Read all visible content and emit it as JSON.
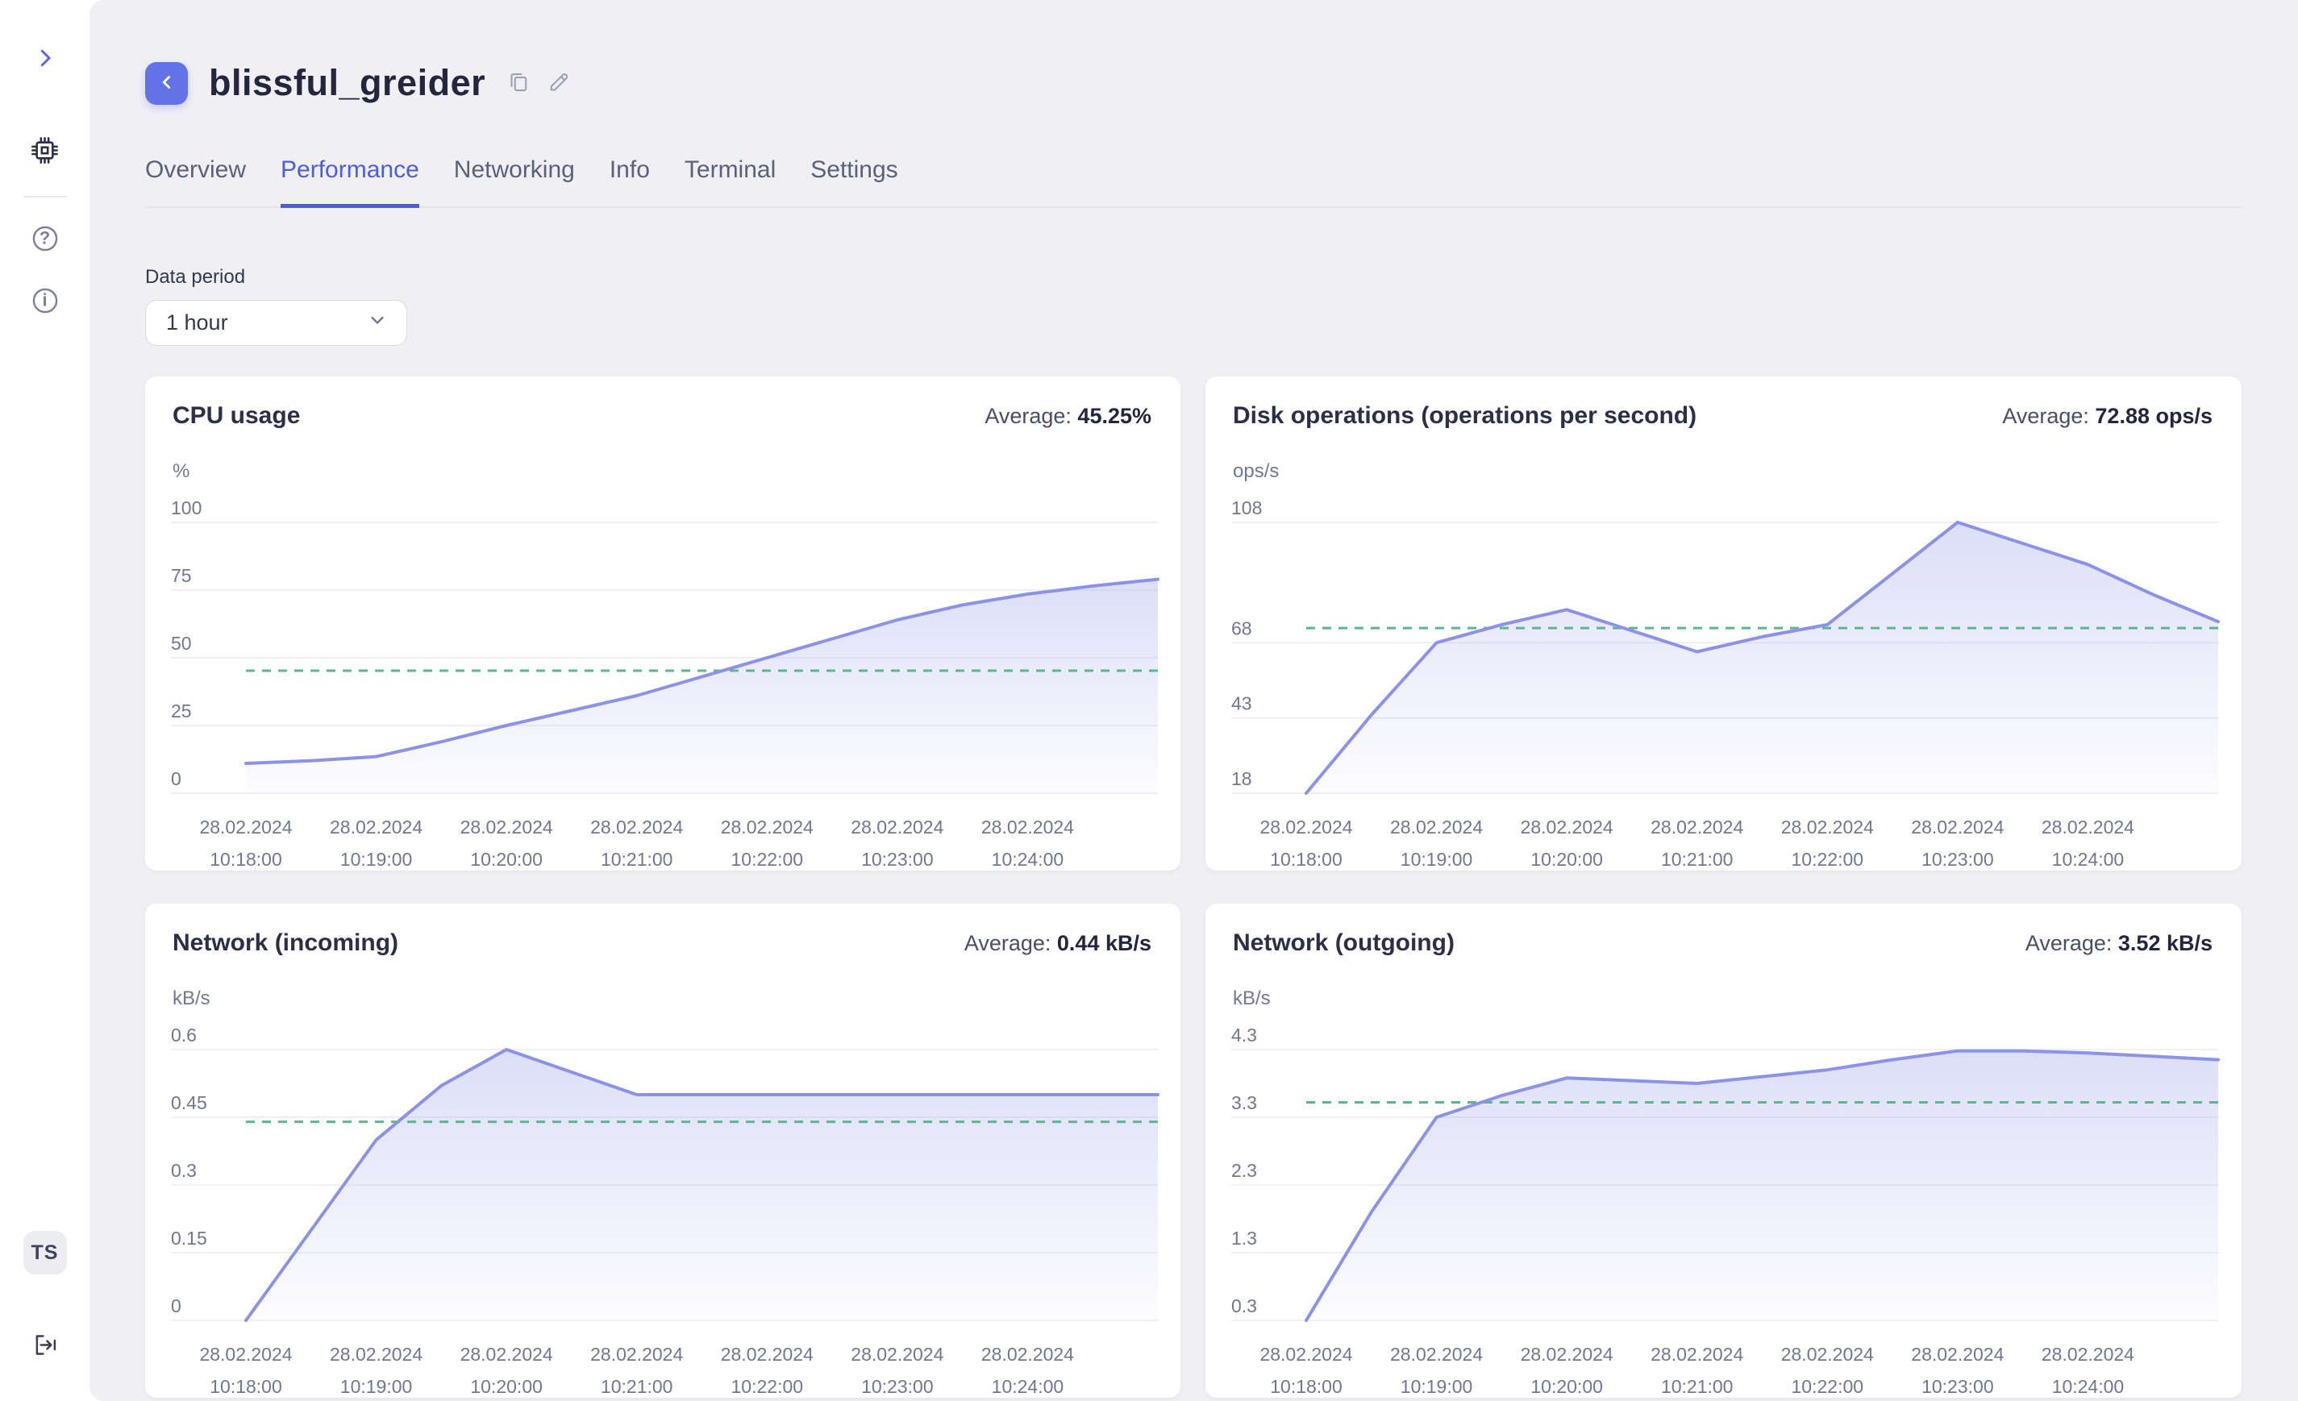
{
  "sidebar": {
    "avatar_initials": "TS",
    "icons": [
      "chevron-right",
      "chip",
      "help",
      "info",
      "logout"
    ]
  },
  "header": {
    "title": "blissful_greider"
  },
  "tabs": [
    {
      "label": "Overview",
      "active": false
    },
    {
      "label": "Performance",
      "active": true
    },
    {
      "label": "Networking",
      "active": false
    },
    {
      "label": "Info",
      "active": false
    },
    {
      "label": "Terminal",
      "active": false
    },
    {
      "label": "Settings",
      "active": false
    }
  ],
  "filter": {
    "label": "Data period",
    "value": "1 hour"
  },
  "colors": {
    "accent": "#4d5ce1",
    "back_button": "#6272e8",
    "line": "#8b92e8",
    "area_top": "rgba(139,146,232,0.30)",
    "area_bottom": "rgba(139,146,232,0.02)",
    "average_dash": "#58b98c",
    "grid": "#ececf1",
    "tick_text": "#73778e"
  },
  "chart_data": [
    {
      "type": "area",
      "title": "CPU usage",
      "unit": "%",
      "average_label": "Average:",
      "average_display": "45.25%",
      "average": 45.25,
      "ylim": [
        0,
        100
      ],
      "y_ticks": [
        100,
        75,
        50,
        25,
        0
      ],
      "xlim": [
        0,
        7
      ],
      "x_labels": [
        {
          "date": "28.02.2024",
          "time": "10:18:00"
        },
        {
          "date": "28.02.2024",
          "time": "10:19:00"
        },
        {
          "date": "28.02.2024",
          "time": "10:20:00"
        },
        {
          "date": "28.02.2024",
          "time": "10:21:00"
        },
        {
          "date": "28.02.2024",
          "time": "10:22:00"
        },
        {
          "date": "28.02.2024",
          "time": "10:23:00"
        },
        {
          "date": "28.02.2024",
          "time": "10:24:00"
        }
      ],
      "points": {
        "t": [
          0,
          0.5,
          1,
          1.5,
          2,
          2.5,
          3,
          3.5,
          4,
          4.5,
          5,
          5.5,
          6,
          6.5,
          7
        ],
        "v": [
          11,
          12,
          13.5,
          19,
          25,
          30.5,
          36,
          43,
          50,
          57,
          64,
          69.5,
          73.5,
          76.5,
          79
        ]
      }
    },
    {
      "type": "area",
      "title": "Disk operations (operations per second)",
      "unit": "ops/s",
      "average_label": "Average:",
      "average_display": "72.88 ops/s",
      "average": 72.88,
      "ylim": [
        18,
        108
      ],
      "y_ticks": [
        108,
        68,
        43,
        18
      ],
      "xlim": [
        0,
        7
      ],
      "x_labels": [
        {
          "date": "28.02.2024",
          "time": "10:18:00"
        },
        {
          "date": "28.02.2024",
          "time": "10:19:00"
        },
        {
          "date": "28.02.2024",
          "time": "10:20:00"
        },
        {
          "date": "28.02.2024",
          "time": "10:21:00"
        },
        {
          "date": "28.02.2024",
          "time": "10:22:00"
        },
        {
          "date": "28.02.2024",
          "time": "10:23:00"
        },
        {
          "date": "28.02.2024",
          "time": "10:24:00"
        }
      ],
      "points": {
        "t": [
          0,
          0.5,
          1,
          1.5,
          2,
          2.5,
          3,
          3.5,
          4,
          4.5,
          5,
          5.5,
          6,
          6.5,
          7
        ],
        "v": [
          18,
          44,
          68,
          74,
          79,
          72,
          65,
          70,
          74,
          91,
          108,
          101,
          94,
          84,
          75
        ]
      }
    },
    {
      "type": "area",
      "title": "Network (incoming)",
      "unit": "kB/s",
      "average_label": "Average:",
      "average_display": "0.44 kB/s",
      "average": 0.44,
      "ylim": [
        0,
        0.6
      ],
      "y_ticks": [
        0.6,
        0.45,
        0.3,
        0.15,
        0
      ],
      "xlim": [
        0,
        7
      ],
      "x_labels": [
        {
          "date": "28.02.2024",
          "time": "10:18:00"
        },
        {
          "date": "28.02.2024",
          "time": "10:19:00"
        },
        {
          "date": "28.02.2024",
          "time": "10:20:00"
        },
        {
          "date": "28.02.2024",
          "time": "10:21:00"
        },
        {
          "date": "28.02.2024",
          "time": "10:22:00"
        },
        {
          "date": "28.02.2024",
          "time": "10:23:00"
        },
        {
          "date": "28.02.2024",
          "time": "10:24:00"
        }
      ],
      "points": {
        "t": [
          0,
          0.5,
          1,
          1.5,
          2,
          2.5,
          3,
          3.5,
          4,
          4.5,
          5,
          5.5,
          6,
          6.5,
          7
        ],
        "v": [
          0,
          0.2,
          0.4,
          0.52,
          0.6,
          0.55,
          0.5,
          0.5,
          0.5,
          0.5,
          0.5,
          0.5,
          0.5,
          0.5,
          0.5
        ]
      }
    },
    {
      "type": "area",
      "title": "Network (outgoing)",
      "unit": "kB/s",
      "average_label": "Average:",
      "average_display": "3.52 kB/s",
      "average": 3.52,
      "ylim": [
        0.3,
        4.3
      ],
      "y_ticks": [
        4.3,
        3.3,
        2.3,
        1.3,
        0.3
      ],
      "xlim": [
        0,
        7
      ],
      "x_labels": [
        {
          "date": "28.02.2024",
          "time": "10:18:00"
        },
        {
          "date": "28.02.2024",
          "time": "10:19:00"
        },
        {
          "date": "28.02.2024",
          "time": "10:20:00"
        },
        {
          "date": "28.02.2024",
          "time": "10:21:00"
        },
        {
          "date": "28.02.2024",
          "time": "10:22:00"
        },
        {
          "date": "28.02.2024",
          "time": "10:23:00"
        },
        {
          "date": "28.02.2024",
          "time": "10:24:00"
        }
      ],
      "points": {
        "t": [
          0,
          0.5,
          1,
          1.5,
          2,
          2.5,
          3,
          3.5,
          4,
          4.5,
          5,
          5.5,
          6,
          6.5,
          7
        ],
        "v": [
          0.3,
          1.9,
          3.3,
          3.62,
          3.88,
          3.84,
          3.8,
          3.9,
          4.0,
          4.15,
          4.28,
          4.28,
          4.25,
          4.2,
          4.15
        ]
      }
    }
  ]
}
